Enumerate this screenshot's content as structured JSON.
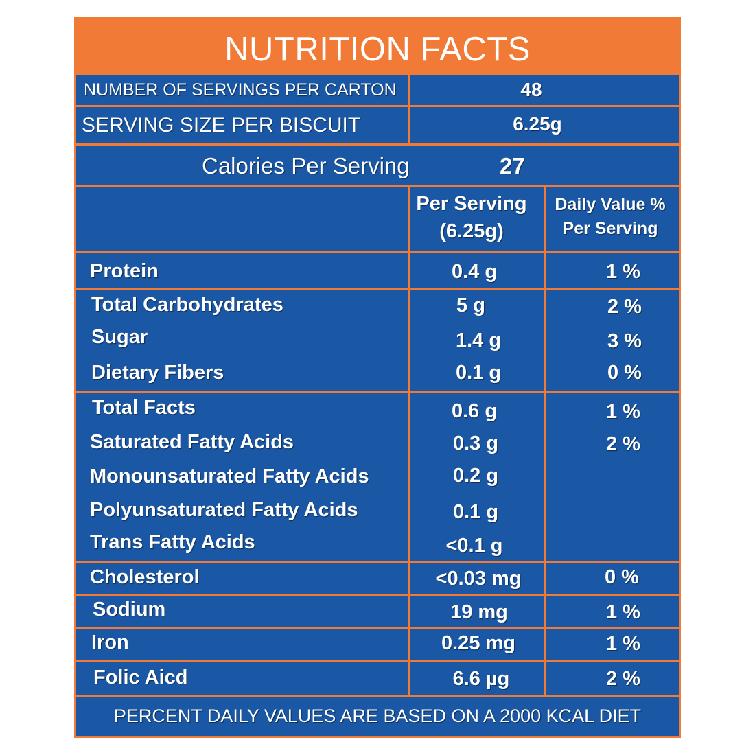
{
  "title": "NUTRITION FACTS",
  "servings_per_carton": {
    "label": "NUMBER OF SERVINGS PER CARTON",
    "value": "48"
  },
  "serving_size": {
    "label": "SERVING SIZE PER BISCUIT",
    "value": "6.25g"
  },
  "calories": {
    "label": "Calories Per Serving",
    "value": "27"
  },
  "columns": {
    "per_serving": "Per Serving",
    "per_serving_amount": "(6.25g)",
    "daily_value": "Daily Value %",
    "daily_value_sub": "Per Serving"
  },
  "protein": {
    "name": "Protein",
    "amount": "0.4 g",
    "dv": "1 %"
  },
  "carbohydrates": [
    {
      "name": "Total Carbohydrates",
      "amount": "5 g",
      "dv": "2 %"
    },
    {
      "name": "Sugar",
      "amount": "1.4 g",
      "dv": "3 %"
    },
    {
      "name": "Dietary Fibers",
      "amount": "0.1 g",
      "dv": "0 %"
    }
  ],
  "fats": [
    {
      "name": "Total Facts",
      "amount": "0.6 g",
      "dv": "1 %"
    },
    {
      "name": "Saturated Fatty Acids",
      "amount": "0.3 g",
      "dv": "2 %"
    },
    {
      "name": "Monounsaturated Fatty Acids",
      "amount": "0.2 g",
      "dv": ""
    },
    {
      "name": "Polyunsaturated Fatty Acids",
      "amount": "0.1 g",
      "dv": ""
    },
    {
      "name": "Trans Fatty Acids",
      "amount": "<0.1 g",
      "dv": ""
    }
  ],
  "cholesterol": {
    "name": "Cholesterol",
    "amount": "<0.03 mg",
    "dv": "0 %"
  },
  "sodium": {
    "name": "Sodium",
    "amount": "19 mg",
    "dv": "1 %"
  },
  "iron": {
    "name": "Iron",
    "amount": "0.25 mg",
    "dv": "1 %"
  },
  "folic_acid": {
    "name": "Folic Aicd",
    "amount": "6.6 µg",
    "dv": "2 %"
  },
  "footer": "PERCENT DAILY VALUES ARE BASED ON A 2000 KCAL DIET",
  "colors": {
    "panel_blue": "#1a58a6",
    "border_orange": "#f07a36",
    "text": "#ffffff"
  }
}
